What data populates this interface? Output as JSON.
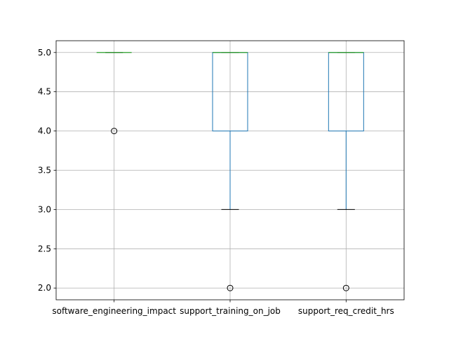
{
  "chart_data": {
    "type": "box",
    "title": "",
    "xlabel": "",
    "ylabel": "",
    "ylim": [
      1.85,
      5.15
    ],
    "yticks": [
      "2.0",
      "2.5",
      "3.0",
      "3.5",
      "4.0",
      "4.5",
      "5.0"
    ],
    "grid": true,
    "legend": "none",
    "categories": [
      "software_engineering_impact",
      "support_training_on_job",
      "support_req_credit_hrs"
    ],
    "boxes": [
      {
        "category": "software_engineering_impact",
        "whisker_low": 5.0,
        "q1": 5.0,
        "median": 5.0,
        "q3": 5.0,
        "whisker_high": 5.0,
        "outliers": [
          4.0
        ]
      },
      {
        "category": "support_training_on_job",
        "whisker_low": 3.0,
        "q1": 4.0,
        "median": 5.0,
        "q3": 5.0,
        "whisker_high": 5.0,
        "outliers": [
          2.0
        ]
      },
      {
        "category": "support_req_credit_hrs",
        "whisker_low": 3.0,
        "q1": 4.0,
        "median": 5.0,
        "q3": 5.0,
        "whisker_high": 5.0,
        "outliers": [
          2.0
        ]
      }
    ],
    "colors": {
      "box": "#1f77b4",
      "median": "#2ca02c",
      "whisker_cap": "#000000",
      "outlier": "#000000",
      "grid": "#b0b0b0",
      "axes": "#000000"
    }
  }
}
